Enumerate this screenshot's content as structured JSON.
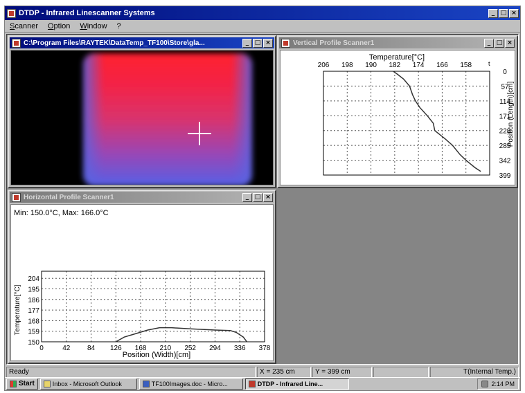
{
  "app": {
    "title": "DTDP - Infrared Linescanner Systems",
    "menus": [
      "Scanner",
      "Option",
      "Window",
      "?"
    ]
  },
  "window_buttons": {
    "minimize": "_",
    "maximize": "□",
    "close": "×"
  },
  "thermal_window": {
    "title": "C:\\Program Files\\RAYTEK\\DataTemp_TF100\\Store\\gla..."
  },
  "vertical_window": {
    "title": "Vertical Profile Scanner1"
  },
  "horizontal_window": {
    "title": "Horizontal Profile Scanner1",
    "minmax": "Min: 150.0°C, Max: 166.0°C"
  },
  "status": {
    "ready": "Ready",
    "x": "X = 235 cm",
    "y": "Y = 399 cm",
    "mode": "T(Internal Temp.)"
  },
  "taskbar": {
    "start": "Start",
    "items": [
      "Inbox - Microsoft Outlook",
      "TF100Images.doc - Micro...",
      "DTDP - Infrared Line..."
    ],
    "clock": "2:14 PM"
  },
  "icons": {
    "app": "app-icon",
    "crosshair": "crosshair-icon",
    "start": "windows-logo-icon"
  },
  "colors": {
    "title_active": "#000c7a",
    "plot_line": "#333333",
    "hot": "#ff2a2a",
    "cold": "#5a63e0"
  },
  "chart_data": [
    {
      "type": "line",
      "orientation": "vertical",
      "xlabel": "Temperature[°C]",
      "ylabel": "Position (Length)[cm]",
      "x_ticks": [
        "206",
        "198",
        "190",
        "182",
        "174",
        "166",
        "158"
      ],
      "x_extra_label": "t",
      "x_range": [
        206,
        150
      ],
      "y_ticks": [
        "0",
        "57",
        "114",
        "171",
        "228",
        "285",
        "342",
        "399"
      ],
      "y_range": [
        0,
        399
      ],
      "grid": true,
      "series": [
        {
          "points": [
            [
              182.5,
              0
            ],
            [
              181,
              12
            ],
            [
              179,
              30
            ],
            [
              177,
              57
            ],
            [
              176,
              90
            ],
            [
              175,
              114
            ],
            [
              173.5,
              140
            ],
            [
              171,
              171
            ],
            [
              169,
              200
            ],
            [
              168.5,
              228
            ],
            [
              165,
              260
            ],
            [
              162.5,
              285
            ],
            [
              160,
              320
            ],
            [
              158,
              342
            ],
            [
              155,
              370
            ],
            [
              153,
              385
            ]
          ]
        }
      ]
    },
    {
      "type": "line",
      "orientation": "horizontal",
      "xlabel": "Position (Width)[cm]",
      "ylabel": "Temperature[°C]",
      "x_ticks": [
        "0",
        "42",
        "84",
        "126",
        "168",
        "210",
        "252",
        "294",
        "336",
        "378"
      ],
      "x_range": [
        0,
        378
      ],
      "y_ticks": [
        "150",
        "159",
        "168",
        "177",
        "186",
        "195",
        "204"
      ],
      "y_range": [
        150,
        210
      ],
      "grid": true,
      "series": [
        {
          "points": [
            [
              126,
              150
            ],
            [
              140,
              154
            ],
            [
              160,
              157
            ],
            [
              180,
              160
            ],
            [
              200,
              162
            ],
            [
              220,
              162
            ],
            [
              252,
              161
            ],
            [
              294,
              160
            ],
            [
              320,
              159.5
            ],
            [
              330,
              158
            ],
            [
              342,
              154
            ],
            [
              348,
              150
            ]
          ]
        }
      ]
    }
  ]
}
